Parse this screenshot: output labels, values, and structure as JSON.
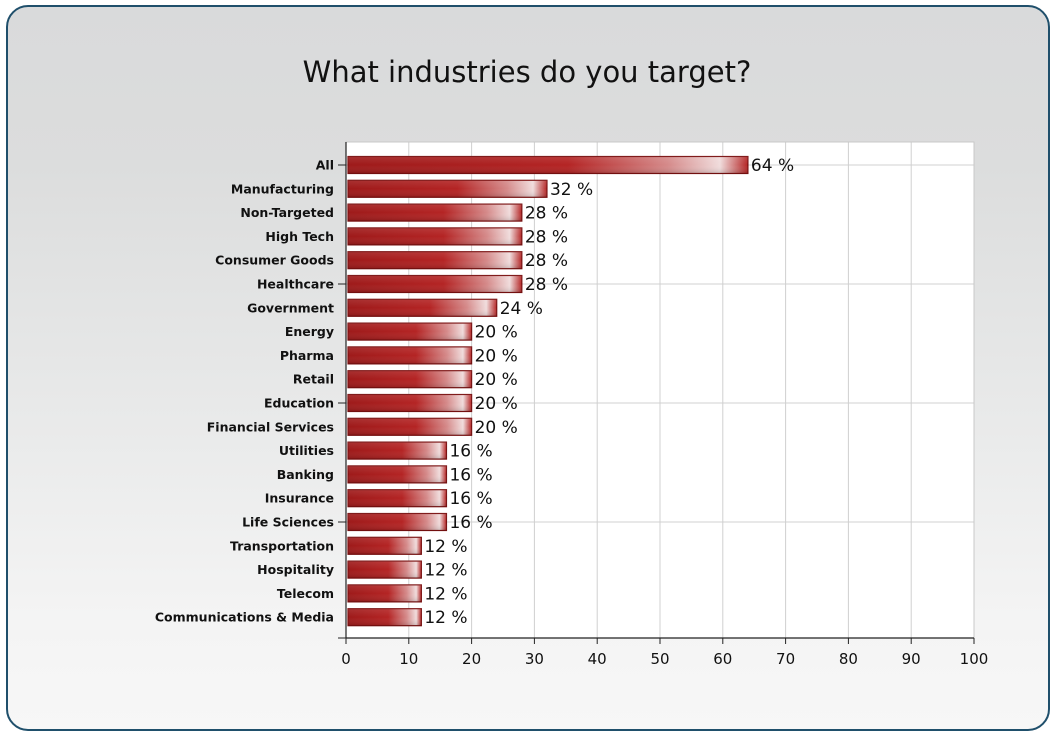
{
  "chart_data": {
    "type": "bar",
    "orientation": "horizontal",
    "title": "What industries do you target?",
    "categories": [
      "All",
      "Manufacturing",
      "Non-Targeted",
      "High Tech",
      "Consumer Goods",
      "Healthcare",
      "Government",
      "Energy",
      "Pharma",
      "Retail",
      "Education",
      "Financial Services",
      "Utilities",
      "Banking",
      "Insurance",
      "Life Sciences",
      "Transportation",
      "Hospitality",
      "Telecom",
      "Communications & Media"
    ],
    "values": [
      64,
      32,
      28,
      28,
      28,
      28,
      24,
      20,
      20,
      20,
      20,
      20,
      16,
      16,
      16,
      16,
      12,
      12,
      12,
      12
    ],
    "value_suffix": " %",
    "xlim": [
      0,
      100
    ],
    "xticks": [
      0,
      10,
      20,
      30,
      40,
      50,
      60,
      70,
      80,
      90,
      100
    ],
    "grid": true,
    "bar_color": "#b22222",
    "bar_border_color": "#7a1010"
  }
}
